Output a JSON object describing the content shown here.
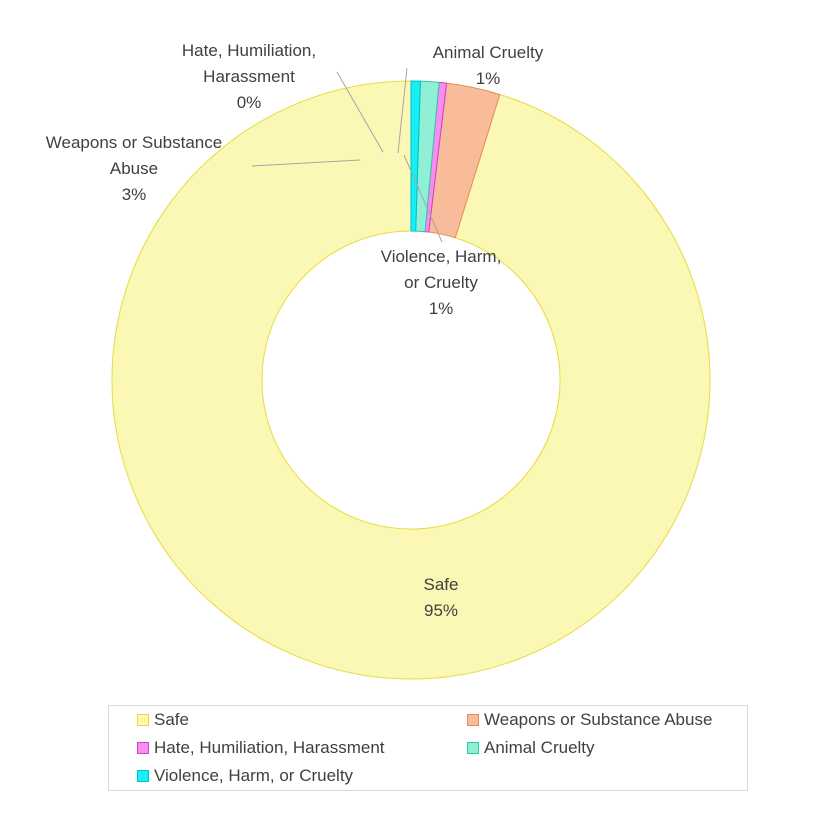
{
  "chart_data": {
    "type": "pie",
    "subtype": "donut",
    "title": "",
    "categories": [
      "Safe",
      "Weapons or Substance Abuse",
      "Hate, Humiliation, Harassment",
      "Animal Cruelty",
      "Violence, Harm, or Cruelty"
    ],
    "values": [
      95.2,
      2.9,
      0.4,
      1.0,
      0.5
    ],
    "label_percents": [
      "95%",
      "3%",
      "0%",
      "1%",
      "1%"
    ],
    "colors": [
      "#fbf7b4",
      "#f8bc9a",
      "#f58ef0",
      "#8ff0d6",
      "#16f0f5"
    ],
    "legend_position": "bottom",
    "data_labels": [
      {
        "series": "Safe",
        "lines": [
          "Safe",
          "95%"
        ]
      },
      {
        "series": "Weapons or Substance Abuse",
        "lines": [
          "Weapons or Substance",
          "Abuse",
          "3%"
        ]
      },
      {
        "series": "Hate, Humiliation, Harassment",
        "lines": [
          "Hate, Humiliation,",
          "Harassment",
          "0%"
        ]
      },
      {
        "series": "Animal Cruelty",
        "lines": [
          "Animal Cruelty",
          "1%"
        ]
      },
      {
        "series": "Violence, Harm, or Cruelty",
        "lines": [
          "Violence, Harm,",
          "or Cruelty",
          "1%"
        ]
      }
    ]
  },
  "legend": {
    "items": [
      {
        "label": "Safe",
        "color": "#fbf7b4",
        "border": "#e8dc3c"
      },
      {
        "label": "Weapons or Substance Abuse",
        "color": "#f8bc9a",
        "border": "#e88a5a"
      },
      {
        "label": "Hate, Humiliation, Harassment",
        "color": "#f58ef0",
        "border": "#d040c8"
      },
      {
        "label": "Animal Cruelty",
        "color": "#8ff0d6",
        "border": "#30c8a0"
      },
      {
        "label": "Violence, Harm, or Cruelty",
        "color": "#16f0f5",
        "border": "#00c0c8"
      }
    ]
  }
}
